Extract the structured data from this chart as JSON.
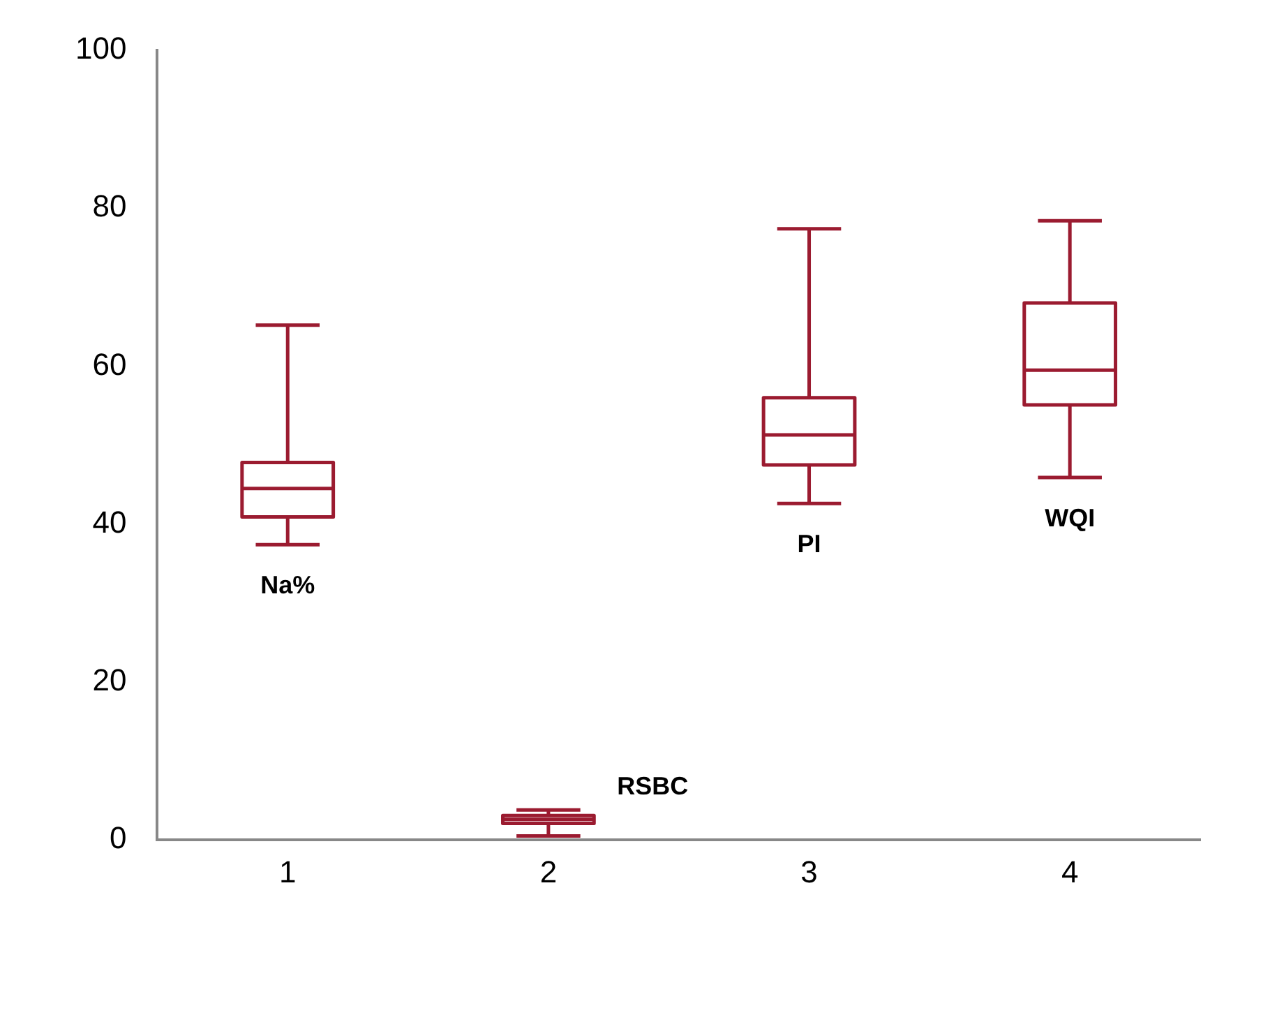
{
  "chart_data": {
    "type": "box",
    "categories": [
      "1",
      "2",
      "3",
      "4"
    ],
    "series": [
      {
        "color": "#9b1b30",
        "boxes": [
          {
            "low": 37.4,
            "q1": 40.9,
            "median": 44.5,
            "q3": 47.8,
            "high": 65.2
          },
          {
            "low": 0.5,
            "q1": 2.1,
            "median": 2.6,
            "q3": 3.1,
            "high": 3.8
          },
          {
            "low": 42.6,
            "q1": 47.5,
            "median": 51.3,
            "q3": 56,
            "high": 77.4
          },
          {
            "low": 45.9,
            "q1": 55.1,
            "median": 59.5,
            "q3": 68,
            "high": 78.4
          }
        ]
      }
    ],
    "ylim": [
      0,
      100
    ],
    "yticks": [
      0,
      20,
      40,
      60,
      80,
      100
    ],
    "grid": false,
    "legend": false,
    "annotations": [
      "Na%",
      "RSBC",
      "PI",
      "WQI"
    ]
  }
}
